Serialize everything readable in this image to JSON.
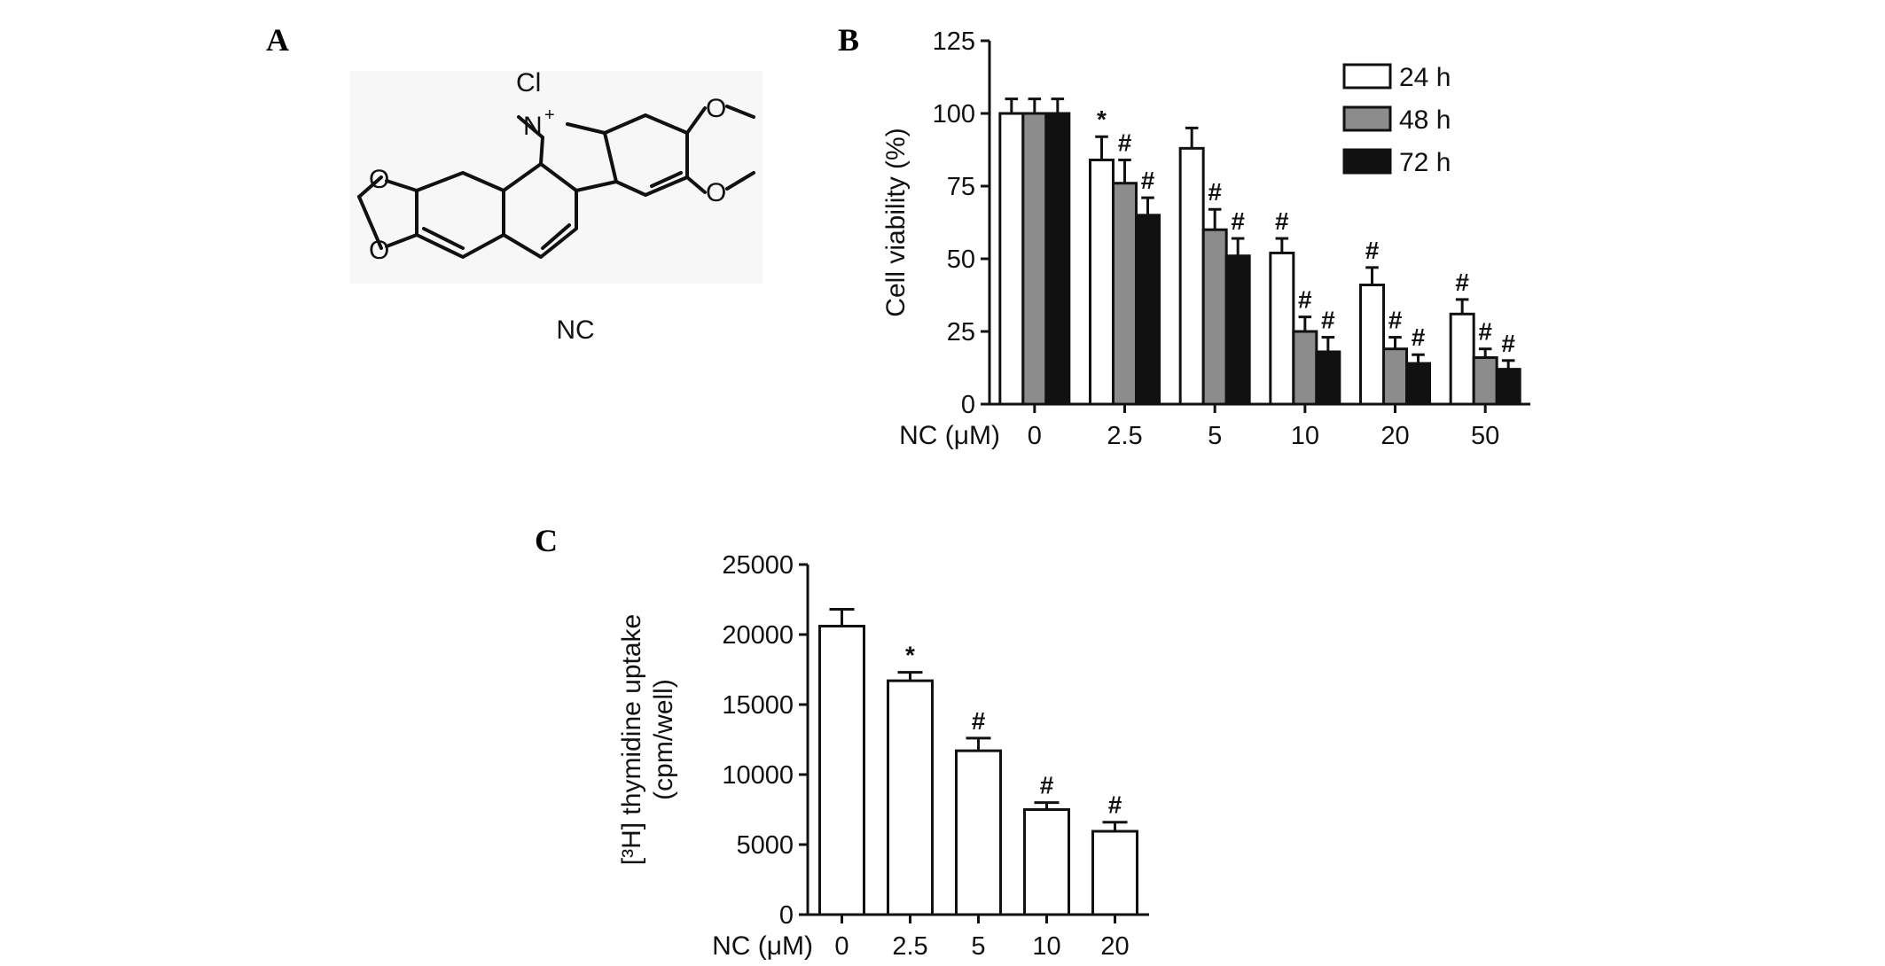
{
  "figure": {
    "panels": [
      {
        "label": "A",
        "compound_label": "NC",
        "atom_labels": {
          "counter_ion": "Cl",
          "nitrogen": "N",
          "charge": "+",
          "oxygen": "O"
        }
      },
      {
        "label": "B"
      },
      {
        "label": "C"
      }
    ]
  },
  "chart_data": [
    {
      "type": "bar",
      "panel": "B",
      "title": "",
      "xlabel": "NC (μM)",
      "ylabel": "Cell viability (%)",
      "categories": [
        "0",
        "2.5",
        "5",
        "10",
        "20",
        "50"
      ],
      "ylim": [
        0,
        125
      ],
      "yticks": [
        0,
        25,
        50,
        75,
        100,
        125
      ],
      "legend_position": "top-right",
      "series": [
        {
          "name": "24 h",
          "color": "#ffffff",
          "values": [
            100,
            84,
            88,
            52,
            41,
            31
          ],
          "errors": [
            5,
            8,
            7,
            5,
            6,
            5
          ],
          "marks": [
            "",
            "*",
            "",
            "#",
            "#",
            "#"
          ]
        },
        {
          "name": "48 h",
          "color": "#8c8c8c",
          "values": [
            100,
            76,
            60,
            25,
            19,
            16
          ],
          "errors": [
            5,
            8,
            7,
            5,
            4,
            3
          ],
          "marks": [
            "",
            "#",
            "#",
            "#",
            "#",
            "#"
          ]
        },
        {
          "name": "72 h",
          "color": "#111111",
          "values": [
            100,
            65,
            51,
            18,
            14,
            12
          ],
          "errors": [
            5,
            6,
            6,
            5,
            3,
            3
          ],
          "marks": [
            "",
            "#",
            "#",
            "#",
            "#",
            "#"
          ]
        }
      ]
    },
    {
      "type": "bar",
      "panel": "C",
      "title": "",
      "xlabel": "NC (μM)",
      "ylabel_line1": "[³H] thymidine uptake",
      "ylabel_line2": "(cpm/well)",
      "categories": [
        "0",
        "2.5",
        "5",
        "10",
        "20"
      ],
      "ylim": [
        0,
        25000
      ],
      "yticks": [
        0,
        5000,
        10000,
        15000,
        20000,
        25000
      ],
      "series": [
        {
          "color": "#ffffff",
          "values": [
            20600,
            16700,
            11700,
            7500,
            5950
          ],
          "errors": [
            1200,
            600,
            900,
            500,
            650
          ],
          "marks": [
            "",
            "*",
            "#",
            "#",
            "#"
          ]
        }
      ]
    }
  ]
}
